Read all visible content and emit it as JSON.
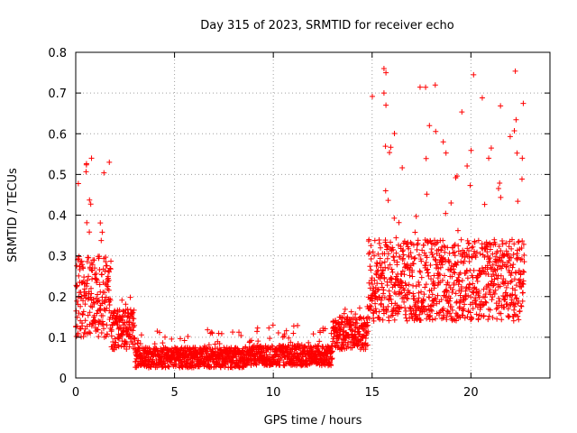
{
  "chart_data": {
    "type": "scatter",
    "title": "Day 315 of 2023, SRMTID for receiver echo",
    "xlabel": "GPS time / hours",
    "ylabel": "SRMTID / TECUs",
    "xlim": [
      0,
      24
    ],
    "ylim": [
      0,
      0.8
    ],
    "grid": true,
    "marker": "+",
    "x_ticks": [
      "0",
      "5",
      "10",
      "15",
      "20"
    ],
    "y_ticks": [
      "0",
      "0.1",
      "0.2",
      "0.3",
      "0.4",
      "0.5",
      "0.6",
      "0.7",
      "0.8"
    ],
    "series_color": "#ff0000",
    "grid_color": "#a0a0a0",
    "series": [
      {
        "name": "SRMTID",
        "profile": [
          {
            "from": 0.0,
            "to": 1.8,
            "base": 0.2,
            "spread": 0.1,
            "spike_max": 0.54
          },
          {
            "from": 1.8,
            "to": 3.0,
            "base": 0.12,
            "spread": 0.05,
            "spike_max": 0.2
          },
          {
            "from": 3.0,
            "to": 8.5,
            "base": 0.05,
            "spread": 0.025,
            "spike_max": 0.12
          },
          {
            "from": 8.5,
            "to": 13.0,
            "base": 0.055,
            "spread": 0.025,
            "spike_max": 0.13
          },
          {
            "from": 13.0,
            "to": 14.8,
            "base": 0.11,
            "spread": 0.04,
            "spike_max": 0.18
          },
          {
            "from": 14.8,
            "to": 22.7,
            "base": 0.24,
            "spread": 0.1,
            "spike_max": 0.76
          }
        ],
        "highlights": [
          {
            "x": 0.8,
            "y": 0.54
          },
          {
            "x": 1.7,
            "y": 0.53
          },
          {
            "x": 15.6,
            "y": 0.76
          },
          {
            "x": 15.7,
            "y": 0.75
          },
          {
            "x": 15.6,
            "y": 0.7
          },
          {
            "x": 15.7,
            "y": 0.67
          },
          {
            "x": 17.9,
            "y": 0.62
          },
          {
            "x": 18.6,
            "y": 0.58
          },
          {
            "x": 20.9,
            "y": 0.54
          },
          {
            "x": 22.6,
            "y": 0.54
          }
        ]
      }
    ]
  }
}
